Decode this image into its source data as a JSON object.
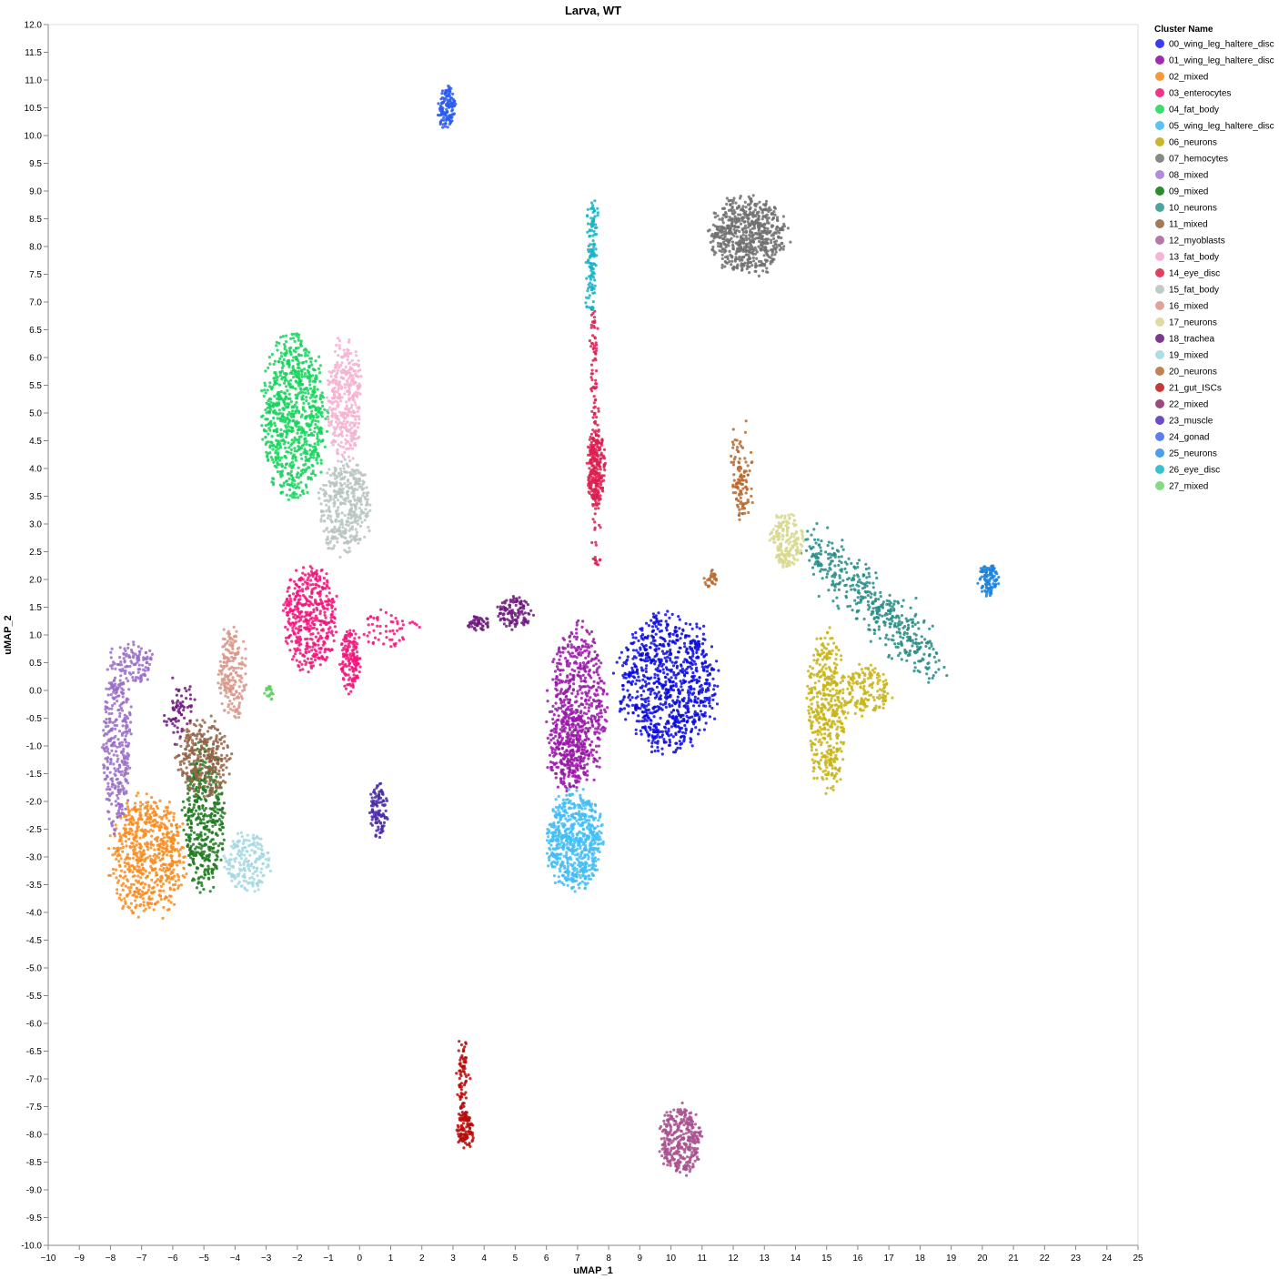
{
  "chart_data": {
    "type": "scatter",
    "title": "Larva, WT",
    "xlabel": "uMAP_1",
    "ylabel": "uMAP_2",
    "xlim": [
      -10,
      25
    ],
    "ylim": [
      -10,
      12
    ],
    "x_ticks": [
      -10,
      -9,
      -8,
      -7,
      -6,
      -5,
      -4,
      -3,
      -2,
      -1,
      0,
      1,
      2,
      3,
      4,
      5,
      6,
      7,
      8,
      9,
      10,
      11,
      12,
      13,
      14,
      15,
      16,
      17,
      18,
      19,
      20,
      21,
      22,
      23,
      24,
      25
    ],
    "y_ticks": [
      12.0,
      11.5,
      11.0,
      10.5,
      10.0,
      9.5,
      9.0,
      8.5,
      8.0,
      7.5,
      7.0,
      6.5,
      6.0,
      5.5,
      5.0,
      4.5,
      4.0,
      3.5,
      3.0,
      2.5,
      2.0,
      1.5,
      1.0,
      0.5,
      0.0,
      -0.5,
      -1.0,
      -1.5,
      -2.0,
      -2.5,
      -3.0,
      -3.5,
      -4.0,
      -4.5,
      -5.0,
      -5.5,
      -6.0,
      -6.5,
      -7.0,
      -7.5,
      -8.0,
      -8.5,
      -9.0,
      -9.5,
      -10.0
    ],
    "grid": false,
    "legend": {
      "title": "Cluster Name",
      "placement": "right",
      "entries": [
        {
          "name": "00_wing_leg_haltere_disc",
          "color": "#3b3bf0"
        },
        {
          "name": "01_wing_leg_haltere_disc",
          "color": "#a12cb0"
        },
        {
          "name": "02_mixed",
          "color": "#f7983b"
        },
        {
          "name": "03_enterocytes",
          "color": "#f0348a"
        },
        {
          "name": "04_fat_body",
          "color": "#3ddc6e"
        },
        {
          "name": "05_wing_leg_haltere_disc",
          "color": "#5ac3f0"
        },
        {
          "name": "06_neurons",
          "color": "#c8b72b"
        },
        {
          "name": "07_hemocytes",
          "color": "#888888"
        },
        {
          "name": "08_mixed",
          "color": "#b08bd8"
        },
        {
          "name": "09_mixed",
          "color": "#2e8a2e"
        },
        {
          "name": "10_neurons",
          "color": "#4aa59f"
        },
        {
          "name": "11_mixed",
          "color": "#a57a58"
        },
        {
          "name": "12_myoblasts",
          "color": "#b478a8"
        },
        {
          "name": "13_fat_body",
          "color": "#f5b5d5"
        },
        {
          "name": "14_eye_disc",
          "color": "#e0405e"
        },
        {
          "name": "15_fat_body",
          "color": "#c0cbc7"
        },
        {
          "name": "16_mixed",
          "color": "#dea49a"
        },
        {
          "name": "17_neurons",
          "color": "#dcdca5"
        },
        {
          "name": "18_trachea",
          "color": "#7b3a8e"
        },
        {
          "name": "19_mixed",
          "color": "#addde5"
        },
        {
          "name": "20_neurons",
          "color": "#c08255"
        },
        {
          "name": "21_gut_ISCs",
          "color": "#c33a3a"
        },
        {
          "name": "22_mixed",
          "color": "#9a4a7e"
        },
        {
          "name": "23_muscle",
          "color": "#6a4ec0"
        },
        {
          "name": "24_gonad",
          "color": "#5a80f0"
        },
        {
          "name": "25_neurons",
          "color": "#4c9ee8"
        },
        {
          "name": "26_eye_disc",
          "color": "#38c0d0"
        },
        {
          "name": "27_mixed",
          "color": "#82dc82"
        }
      ]
    },
    "series": [
      {
        "cluster": "00_wing_leg_haltere_disc",
        "color": "#0a0ae0",
        "shape": "ellipse",
        "x": 9.9,
        "y": 0.15,
        "rx": 1.7,
        "ry": 1.3,
        "n": 900
      },
      {
        "cluster": "01_wing_leg_haltere_disc",
        "color": "#9a18a8",
        "shape": "ellipse",
        "x": 7.0,
        "y": -0.3,
        "rx": 1.0,
        "ry": 1.55,
        "n": 600
      },
      {
        "cluster": "01_wing_leg_haltere_disc",
        "color": "#9a18a8",
        "shape": "ellipse",
        "x": 6.7,
        "y": -1.1,
        "rx": 0.7,
        "ry": 0.8,
        "n": 200
      },
      {
        "cluster": "02_mixed",
        "color": "#f78c1e",
        "shape": "ellipse",
        "x": -6.8,
        "y": -3.0,
        "rx": 1.3,
        "ry": 1.15,
        "n": 650
      },
      {
        "cluster": "03_enterocytes",
        "color": "#f2147a",
        "shape": "ellipse",
        "x": -1.6,
        "y": 1.3,
        "rx": 0.9,
        "ry": 1.0,
        "n": 450
      },
      {
        "cluster": "03_enterocytes",
        "color": "#f2147a",
        "shape": "ellipse",
        "x": -0.3,
        "y": 0.5,
        "rx": 0.35,
        "ry": 0.6,
        "n": 150
      },
      {
        "cluster": "03_enterocytes",
        "color": "#f2147a",
        "shape": "ellipse",
        "x": 0.8,
        "y": 1.1,
        "rx": 1.2,
        "ry": 0.35,
        "n": 60
      },
      {
        "cluster": "04_fat_body",
        "color": "#14d45a",
        "shape": "ellipse",
        "x": -2.1,
        "y": 4.9,
        "rx": 1.1,
        "ry": 1.6,
        "n": 800
      },
      {
        "cluster": "05_wing_leg_haltere_disc",
        "color": "#42bdf5",
        "shape": "ellipse",
        "x": 6.9,
        "y": -2.7,
        "rx": 0.95,
        "ry": 0.95,
        "n": 650
      },
      {
        "cluster": "06_neurons",
        "color": "#c8b414",
        "shape": "ellipse",
        "x": 15.0,
        "y": -0.4,
        "rx": 0.7,
        "ry": 1.5,
        "n": 450
      },
      {
        "cluster": "06_neurons",
        "color": "#c8b414",
        "shape": "ellipse",
        "x": 16.3,
        "y": 0.0,
        "rx": 0.8,
        "ry": 0.5,
        "n": 150
      },
      {
        "cluster": "07_hemocytes",
        "color": "#707070",
        "shape": "ellipse",
        "x": 12.5,
        "y": 8.2,
        "rx": 1.3,
        "ry": 0.75,
        "n": 650
      },
      {
        "cluster": "08_mixed",
        "color": "#9a6cc8",
        "shape": "ellipse",
        "x": -7.8,
        "y": -0.9,
        "rx": 0.5,
        "ry": 1.7,
        "n": 350
      },
      {
        "cluster": "08_mixed",
        "color": "#9a6cc8",
        "shape": "ellipse",
        "x": -7.2,
        "y": 0.5,
        "rx": 0.6,
        "ry": 0.4,
        "n": 100
      },
      {
        "cluster": "09_mixed",
        "color": "#1e7a1e",
        "shape": "ellipse",
        "x": -5.0,
        "y": -2.3,
        "rx": 0.7,
        "ry": 1.4,
        "n": 450
      },
      {
        "cluster": "10_neurons",
        "color": "#268c86",
        "shape": "line",
        "x1": 14.5,
        "y1": 2.6,
        "x2": 18.5,
        "y2": 0.5,
        "w": 0.25,
        "n": 450
      },
      {
        "cluster": "11_mixed",
        "color": "#946448",
        "shape": "ellipse",
        "x": -5.0,
        "y": -1.2,
        "rx": 0.9,
        "ry": 0.8,
        "n": 300
      },
      {
        "cluster": "12_myoblasts",
        "color": "#a8508e",
        "shape": "ellipse",
        "x": 10.3,
        "y": -8.1,
        "rx": 0.7,
        "ry": 0.65,
        "n": 350
      },
      {
        "cluster": "13_fat_body",
        "color": "#f5b0d0",
        "shape": "ellipse",
        "x": -0.5,
        "y": 5.2,
        "rx": 0.6,
        "ry": 1.2,
        "n": 350
      },
      {
        "cluster": "14_eye_disc",
        "color": "#dc2050",
        "shape": "ellipse",
        "x": 7.6,
        "y": 4.0,
        "rx": 0.3,
        "ry": 0.8,
        "n": 250
      },
      {
        "cluster": "14_eye_disc",
        "color": "#dc2050",
        "shape": "line",
        "x1": 7.5,
        "y1": 6.8,
        "x2": 7.6,
        "y2": 2.2,
        "w": 0.06,
        "n": 120
      },
      {
        "cluster": "15_fat_body",
        "color": "#b8c4c0",
        "shape": "ellipse",
        "x": -0.5,
        "y": 3.3,
        "rx": 0.9,
        "ry": 0.9,
        "n": 400
      },
      {
        "cluster": "16_mixed",
        "color": "#d8968a",
        "shape": "ellipse",
        "x": -4.1,
        "y": 0.3,
        "rx": 0.5,
        "ry": 0.9,
        "n": 200
      },
      {
        "cluster": "17_neurons",
        "color": "#d8d890",
        "shape": "ellipse",
        "x": 13.7,
        "y": 2.7,
        "rx": 0.55,
        "ry": 0.55,
        "n": 200
      },
      {
        "cluster": "18_trachea",
        "color": "#6e1a7e",
        "shape": "ellipse",
        "x": 5.0,
        "y": 1.4,
        "rx": 0.6,
        "ry": 0.3,
        "n": 120
      },
      {
        "cluster": "18_trachea",
        "color": "#6e1a7e",
        "shape": "ellipse",
        "x": 3.8,
        "y": 1.2,
        "rx": 0.4,
        "ry": 0.15,
        "n": 50
      },
      {
        "cluster": "18_trachea",
        "color": "#6e1a7e",
        "shape": "line",
        "x1": -5.5,
        "y1": -0.1,
        "x2": -6.0,
        "y2": -0.6,
        "w": 0.15,
        "n": 70
      },
      {
        "cluster": "19_mixed",
        "color": "#a5d8e2",
        "shape": "ellipse",
        "x": -3.6,
        "y": -3.1,
        "rx": 0.8,
        "ry": 0.55,
        "n": 200
      },
      {
        "cluster": "20_neurons",
        "color": "#b86a30",
        "shape": "line",
        "x1": 12.2,
        "y1": 4.4,
        "x2": 12.3,
        "y2": 3.2,
        "w": 0.15,
        "n": 120
      },
      {
        "cluster": "20_neurons",
        "color": "#b86a30",
        "shape": "ellipse",
        "x": 11.3,
        "y": 2.0,
        "rx": 0.25,
        "ry": 0.2,
        "n": 30
      },
      {
        "cluster": "21_gut_ISCs",
        "color": "#b80a0a",
        "shape": "line",
        "x1": 3.3,
        "y1": -6.4,
        "x2": 3.3,
        "y2": -7.6,
        "w": 0.08,
        "n": 80
      },
      {
        "cluster": "21_gut_ISCs",
        "color": "#b80a0a",
        "shape": "ellipse",
        "x": 3.4,
        "y": -7.9,
        "rx": 0.3,
        "ry": 0.35,
        "n": 110
      },
      {
        "cluster": "23_muscle",
        "color": "#4a2aa8",
        "shape": "ellipse",
        "x": 0.6,
        "y": -2.2,
        "rx": 0.3,
        "ry": 0.55,
        "n": 110
      },
      {
        "cluster": "24_gonad",
        "color": "#2a5af0",
        "shape": "ellipse",
        "x": 2.8,
        "y": 10.5,
        "rx": 0.3,
        "ry": 0.4,
        "n": 130
      },
      {
        "cluster": "25_neurons",
        "color": "#1a82e0",
        "shape": "ellipse",
        "x": 20.2,
        "y": 2.0,
        "rx": 0.35,
        "ry": 0.3,
        "n": 110
      },
      {
        "cluster": "26_eye_disc",
        "color": "#14b4c8",
        "shape": "line",
        "x1": 7.5,
        "y1": 8.7,
        "x2": 7.4,
        "y2": 6.9,
        "w": 0.08,
        "n": 130
      },
      {
        "cluster": "27_mixed",
        "color": "#5ad25a",
        "shape": "ellipse",
        "x": -2.9,
        "y": -0.05,
        "rx": 0.15,
        "ry": 0.15,
        "n": 20
      }
    ]
  }
}
